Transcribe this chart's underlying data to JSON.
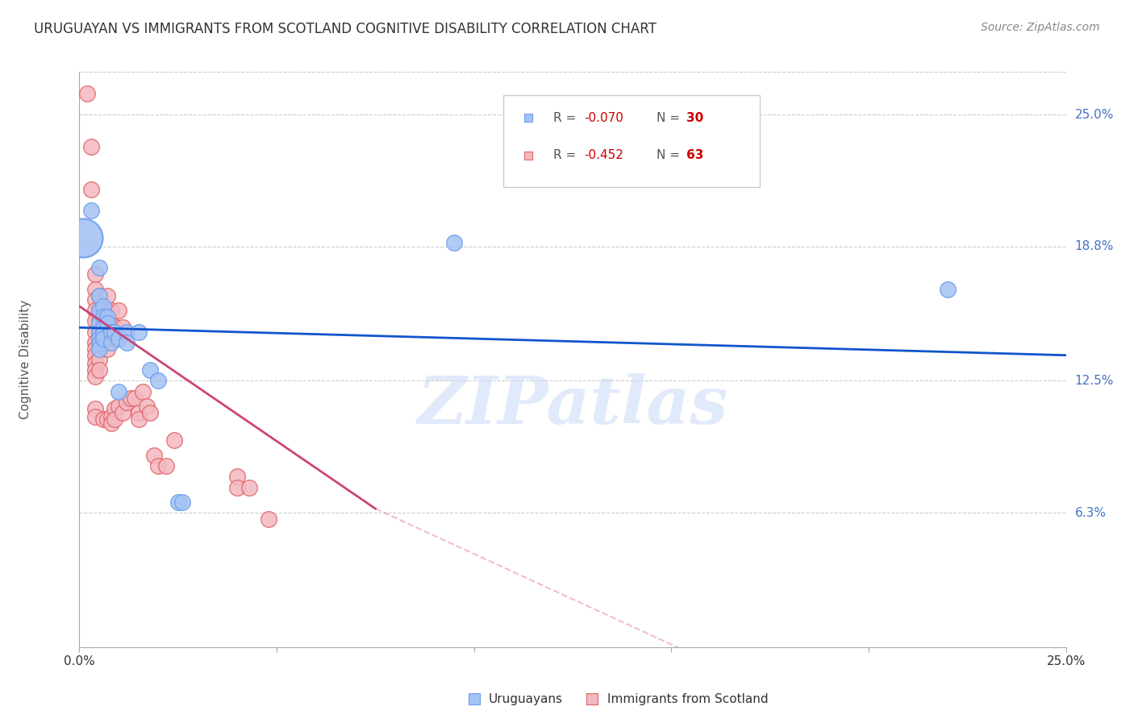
{
  "title": "URUGUAYAN VS IMMIGRANTS FROM SCOTLAND COGNITIVE DISABILITY CORRELATION CHART",
  "source": "Source: ZipAtlas.com",
  "ylabel": "Cognitive Disability",
  "ytick_labels": [
    "25.0%",
    "18.8%",
    "12.5%",
    "6.3%"
  ],
  "ytick_values": [
    0.25,
    0.188,
    0.125,
    0.063
  ],
  "xlim": [
    0.0,
    0.25
  ],
  "ylim": [
    0.0,
    0.27
  ],
  "legend_blue_r": "-0.070",
  "legend_blue_n": "30",
  "legend_pink_r": "-0.452",
  "legend_pink_n": "63",
  "legend_label_blue": "Uruguayans",
  "legend_label_pink": "Immigrants from Scotland",
  "watermark": "ZIPatlas",
  "blue_color": "#a4c2f4",
  "pink_color": "#f4b8c1",
  "blue_edge_color": "#6d9eeb",
  "pink_edge_color": "#e06666",
  "blue_line_color": "#1155cc",
  "pink_line_color": "#cc4477",
  "blue_scatter": [
    [
      0.003,
      0.205
    ],
    [
      0.005,
      0.178
    ],
    [
      0.005,
      0.165
    ],
    [
      0.005,
      0.158
    ],
    [
      0.005,
      0.152
    ],
    [
      0.005,
      0.148
    ],
    [
      0.005,
      0.145
    ],
    [
      0.005,
      0.142
    ],
    [
      0.005,
      0.14
    ],
    [
      0.006,
      0.16
    ],
    [
      0.006,
      0.155
    ],
    [
      0.006,
      0.15
    ],
    [
      0.006,
      0.147
    ],
    [
      0.006,
      0.145
    ],
    [
      0.007,
      0.155
    ],
    [
      0.007,
      0.152
    ],
    [
      0.008,
      0.148
    ],
    [
      0.008,
      0.143
    ],
    [
      0.009,
      0.148
    ],
    [
      0.01,
      0.145
    ],
    [
      0.01,
      0.12
    ],
    [
      0.012,
      0.148
    ],
    [
      0.012,
      0.143
    ],
    [
      0.015,
      0.148
    ],
    [
      0.018,
      0.13
    ],
    [
      0.02,
      0.125
    ],
    [
      0.025,
      0.068
    ],
    [
      0.026,
      0.068
    ],
    [
      0.095,
      0.19
    ],
    [
      0.22,
      0.168
    ]
  ],
  "blue_large": [
    [
      0.001,
      0.192
    ]
  ],
  "blue_large_size": 1200,
  "pink_scatter": [
    [
      0.002,
      0.26
    ],
    [
      0.003,
      0.235
    ],
    [
      0.003,
      0.215
    ],
    [
      0.004,
      0.175
    ],
    [
      0.004,
      0.168
    ],
    [
      0.004,
      0.163
    ],
    [
      0.004,
      0.158
    ],
    [
      0.004,
      0.153
    ],
    [
      0.004,
      0.148
    ],
    [
      0.004,
      0.143
    ],
    [
      0.004,
      0.14
    ],
    [
      0.004,
      0.137
    ],
    [
      0.004,
      0.133
    ],
    [
      0.004,
      0.13
    ],
    [
      0.004,
      0.127
    ],
    [
      0.004,
      0.112
    ],
    [
      0.004,
      0.108
    ],
    [
      0.005,
      0.165
    ],
    [
      0.005,
      0.158
    ],
    [
      0.005,
      0.153
    ],
    [
      0.005,
      0.148
    ],
    [
      0.005,
      0.143
    ],
    [
      0.005,
      0.14
    ],
    [
      0.005,
      0.135
    ],
    [
      0.005,
      0.13
    ],
    [
      0.006,
      0.157
    ],
    [
      0.006,
      0.15
    ],
    [
      0.006,
      0.143
    ],
    [
      0.006,
      0.107
    ],
    [
      0.007,
      0.165
    ],
    [
      0.007,
      0.158
    ],
    [
      0.007,
      0.153
    ],
    [
      0.007,
      0.145
    ],
    [
      0.007,
      0.14
    ],
    [
      0.007,
      0.107
    ],
    [
      0.008,
      0.158
    ],
    [
      0.008,
      0.152
    ],
    [
      0.008,
      0.108
    ],
    [
      0.008,
      0.105
    ],
    [
      0.009,
      0.15
    ],
    [
      0.009,
      0.145
    ],
    [
      0.009,
      0.112
    ],
    [
      0.009,
      0.107
    ],
    [
      0.01,
      0.158
    ],
    [
      0.01,
      0.113
    ],
    [
      0.011,
      0.15
    ],
    [
      0.011,
      0.11
    ],
    [
      0.012,
      0.115
    ],
    [
      0.013,
      0.117
    ],
    [
      0.014,
      0.117
    ],
    [
      0.015,
      0.11
    ],
    [
      0.015,
      0.107
    ],
    [
      0.016,
      0.12
    ],
    [
      0.017,
      0.113
    ],
    [
      0.018,
      0.11
    ],
    [
      0.019,
      0.09
    ],
    [
      0.02,
      0.085
    ],
    [
      0.022,
      0.085
    ],
    [
      0.024,
      0.097
    ],
    [
      0.04,
      0.08
    ],
    [
      0.04,
      0.075
    ],
    [
      0.043,
      0.075
    ],
    [
      0.048,
      0.06
    ]
  ],
  "blue_trendline": [
    [
      0.0,
      0.15
    ],
    [
      0.25,
      0.137
    ]
  ],
  "pink_trendline_solid": [
    [
      0.0,
      0.16
    ],
    [
      0.075,
      0.065
    ]
  ],
  "pink_trendline_dashed": [
    [
      0.075,
      0.065
    ],
    [
      0.175,
      -0.02
    ]
  ]
}
